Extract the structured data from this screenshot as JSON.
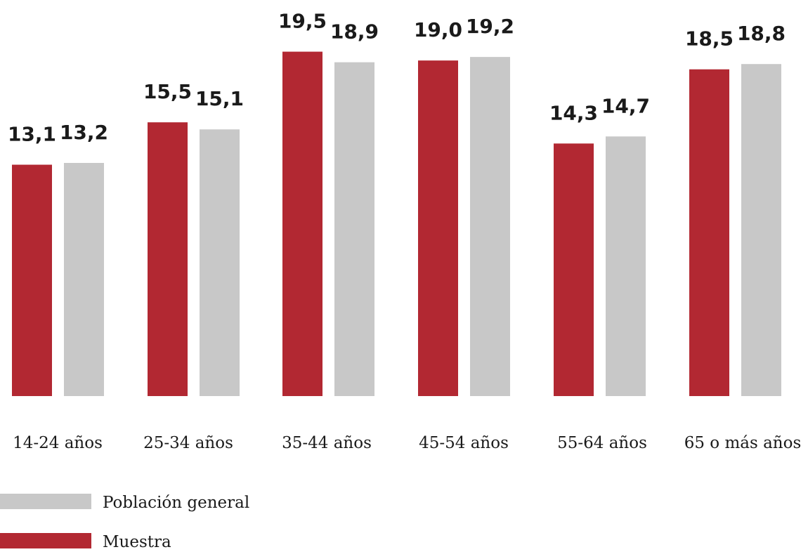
{
  "chart_data": {
    "type": "bar",
    "title": "",
    "xlabel": "",
    "ylabel": "",
    "categories": [
      "14-24 años",
      "25-34 años",
      "35-44 años",
      "45-54 años",
      "55-64 años",
      "65 o más años"
    ],
    "series": [
      {
        "name": "Muestra",
        "color": "#b22832",
        "values": [
          13.1,
          15.5,
          19.5,
          19.0,
          14.3,
          18.5
        ],
        "labels": [
          "13,1",
          "15,5",
          "19,5",
          "19,0",
          "14,3",
          "18,5"
        ]
      },
      {
        "name": "Población general",
        "color": "#c8c8c8",
        "values": [
          13.2,
          15.1,
          18.9,
          19.2,
          14.7,
          18.8
        ],
        "labels": [
          "13,2",
          "15,1",
          "18,9",
          "19,2",
          "14,7",
          "18,8"
        ]
      }
    ],
    "ylim": [
      0,
      20
    ],
    "grid": false,
    "legend": {
      "placement": "bottom-left",
      "order": [
        "Población general",
        "Muestra"
      ]
    },
    "data_labels": true
  }
}
